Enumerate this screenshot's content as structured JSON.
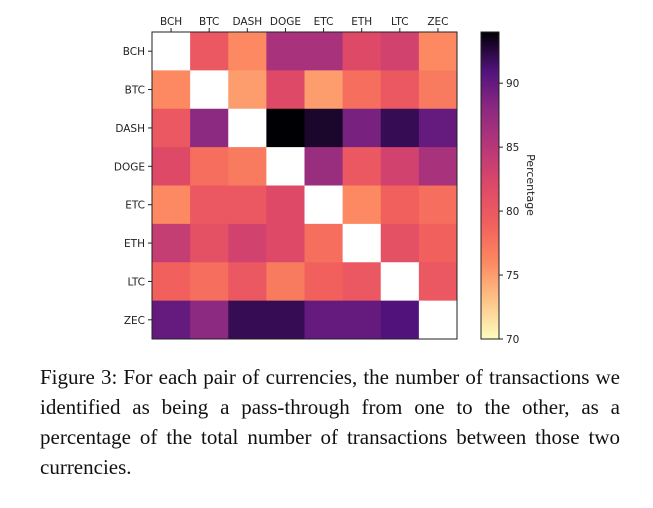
{
  "chart_data": {
    "type": "heatmap",
    "categories": [
      "BCH",
      "BTC",
      "DASH",
      "DOGE",
      "ETC",
      "ETH",
      "LTC",
      "ZEC"
    ],
    "row_labels": [
      "BCH",
      "BTC",
      "DASH",
      "DOGE",
      "ETC",
      "ETH",
      "LTC",
      "ZEC"
    ],
    "values": [
      [
        null,
        80,
        76,
        86,
        86,
        82,
        83,
        76
      ],
      [
        76,
        null,
        75,
        82,
        75,
        78,
        80,
        77
      ],
      [
        80,
        88,
        null,
        94,
        93,
        89,
        92,
        90
      ],
      [
        82,
        78,
        77,
        null,
        87,
        80,
        83,
        86
      ],
      [
        76,
        80,
        80,
        82,
        null,
        76,
        79,
        78
      ],
      [
        84,
        81,
        83,
        82,
        78,
        null,
        81,
        79
      ],
      [
        79,
        78,
        80,
        77,
        79,
        80,
        null,
        80
      ],
      [
        90,
        88,
        92,
        92,
        90,
        90,
        91,
        null
      ]
    ],
    "colorbar": {
      "label": "Percentage",
      "range": [
        70,
        94
      ],
      "ticks": [
        70,
        75,
        80,
        85,
        90
      ]
    },
    "colormap": "magma_r",
    "diagonal_color": "#ffffff"
  },
  "caption": {
    "label": "Figure 3:",
    "text": "For each pair of currencies, the number of transactions we identified as being a pass-through from one to the other, as a percentage of the total number of transactions between those two currencies."
  }
}
